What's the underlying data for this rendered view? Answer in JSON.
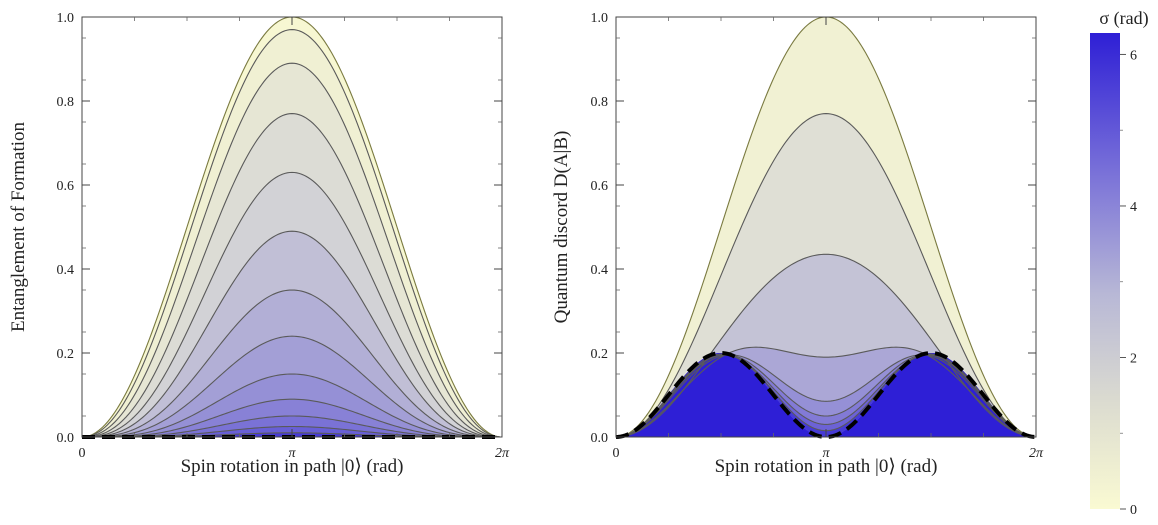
{
  "chart_data": [
    {
      "type": "area",
      "panel": "left",
      "title": "",
      "xlabel": "Spin rotation in path |0⟩ (rad)",
      "ylabel": "Entanglement of Formation",
      "xlim": [
        0,
        6.2832
      ],
      "ylim": [
        0,
        1.0
      ],
      "xticks": [
        {
          "value": 0,
          "label": "0"
        },
        {
          "value": 3.14159,
          "label": "π"
        },
        {
          "value": 6.28319,
          "label": "2π"
        }
      ],
      "yticks": [
        {
          "value": 0,
          "label": "0.0"
        },
        {
          "value": 0.2,
          "label": "0.2"
        },
        {
          "value": 0.4,
          "label": "0.4"
        },
        {
          "value": 0.6,
          "label": "0.6"
        },
        {
          "value": 0.8,
          "label": "0.8"
        },
        {
          "value": 1.0,
          "label": "1.0"
        }
      ],
      "curve_family": "peak at x = π; curves ordered by σ from 0 (top) to 2π (bottom)",
      "curves": [
        {
          "sigma": 0.0,
          "peak": 1.0
        },
        {
          "sigma": 0.2,
          "peak": 0.97
        },
        {
          "sigma": 0.5,
          "peak": 0.89
        },
        {
          "sigma": 0.85,
          "peak": 0.77
        },
        {
          "sigma": 1.2,
          "peak": 0.63
        },
        {
          "sigma": 1.55,
          "peak": 0.49
        },
        {
          "sigma": 1.9,
          "peak": 0.35
        },
        {
          "sigma": 2.3,
          "peak": 0.24
        },
        {
          "sigma": 2.7,
          "peak": 0.15
        },
        {
          "sigma": 3.1,
          "peak": 0.09
        },
        {
          "sigma": 3.5,
          "peak": 0.05
        },
        {
          "sigma": 4.0,
          "peak": 0.025
        },
        {
          "sigma": 4.6,
          "peak": 0.01
        },
        {
          "sigma": 6.28,
          "peak": 0.0
        }
      ],
      "dashed_curve": {
        "sigma": 6.28,
        "style": "black dashed",
        "peak": 0.0
      }
    },
    {
      "type": "area",
      "panel": "right",
      "title": "",
      "xlabel": "Spin rotation in path |0⟩ (rad)",
      "ylabel": "Quantum discord  D(A|B)",
      "xlim": [
        0,
        6.2832
      ],
      "ylim": [
        0,
        1.0
      ],
      "xticks": [
        {
          "value": 0,
          "label": "0"
        },
        {
          "value": 3.14159,
          "label": "π"
        },
        {
          "value": 6.28319,
          "label": "2π"
        }
      ],
      "yticks": [
        {
          "value": 0,
          "label": "0.0"
        },
        {
          "value": 0.2,
          "label": "0.2"
        },
        {
          "value": 0.4,
          "label": "0.4"
        },
        {
          "value": 0.6,
          "label": "0.6"
        },
        {
          "value": 0.8,
          "label": "0.8"
        },
        {
          "value": 1.0,
          "label": "1.0"
        }
      ],
      "curve_family": "single hump for σ = 0, double hump with dip at x = π for larger σ",
      "curves": [
        {
          "sigma": 0.0,
          "peak": 1.0,
          "dip_at_pi": 1.0
        },
        {
          "sigma": 0.6,
          "peak": 0.77,
          "dip_at_pi": 0.77
        },
        {
          "sigma": 1.3,
          "peak": 0.45,
          "dip_at_pi": 0.435
        },
        {
          "sigma": 2.0,
          "peak": 0.285,
          "dip_at_pi": 0.19
        },
        {
          "sigma": 2.6,
          "peak": 0.235,
          "dip_at_pi": 0.085
        },
        {
          "sigma": 3.2,
          "peak": 0.22,
          "dip_at_pi": 0.05
        },
        {
          "sigma": 3.8,
          "peak": 0.21,
          "dip_at_pi": 0.03
        },
        {
          "sigma": 4.6,
          "peak": 0.205,
          "dip_at_pi": 0.015
        },
        {
          "sigma": 6.28,
          "peak": 0.2,
          "dip_at_pi": 0.0
        }
      ],
      "dashed_curve": {
        "sigma": 6.28,
        "style": "black dashed",
        "peak": 0.2,
        "peaks_at": [
          1.5708,
          4.7124
        ],
        "zero_at": [
          0,
          3.14159,
          6.28319
        ]
      }
    }
  ],
  "colorbar": {
    "title": "σ (rad)",
    "min": 0,
    "max": 6.2832,
    "ticks": [
      {
        "value": 0,
        "label": "0"
      },
      {
        "value": 2,
        "label": "2"
      },
      {
        "value": 4,
        "label": "4"
      },
      {
        "value": 6,
        "label": "6"
      }
    ],
    "color_low": "#fafad2",
    "color_mid": "#d2d2d6",
    "color_high": "#2e1fd6"
  }
}
